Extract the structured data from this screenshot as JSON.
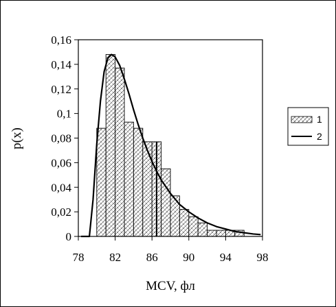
{
  "chart_data": {
    "type": "bar",
    "title": "",
    "xlabel": "MCV, фл",
    "ylabel": "p(x)",
    "xlim": [
      78,
      98
    ],
    "ylim": [
      0,
      0.16
    ],
    "x_ticks": [
      "78",
      "82",
      "86",
      "90",
      "94",
      "98"
    ],
    "y_ticks": [
      "0",
      "0,02",
      "0,04",
      "0,06",
      "0,08",
      "0,1",
      "0,12",
      "0,14",
      "0,16"
    ],
    "grid": false,
    "legend_position": "right",
    "legend": [
      "1",
      "2"
    ],
    "series": [
      {
        "name": "1",
        "kind": "histogram",
        "bins": [
          {
            "x0": 78,
            "x1": 79,
            "value": 0.0
          },
          {
            "x0": 79,
            "x1": 80,
            "value": 0.0
          },
          {
            "x0": 80,
            "x1": 81,
            "value": 0.088
          },
          {
            "x0": 81,
            "x1": 82,
            "value": 0.148
          },
          {
            "x0": 82,
            "x1": 83,
            "value": 0.137
          },
          {
            "x0": 83,
            "x1": 84,
            "value": 0.093
          },
          {
            "x0": 84,
            "x1": 85,
            "value": 0.088
          },
          {
            "x0": 85,
            "x1": 86,
            "value": 0.077
          },
          {
            "x0": 86,
            "x1": 87,
            "value": 0.077
          },
          {
            "x0": 87,
            "x1": 88,
            "value": 0.055
          },
          {
            "x0": 88,
            "x1": 89,
            "value": 0.033
          },
          {
            "x0": 89,
            "x1": 90,
            "value": 0.022
          },
          {
            "x0": 90,
            "x1": 91,
            "value": 0.016
          },
          {
            "x0": 91,
            "x1": 92,
            "value": 0.011
          },
          {
            "x0": 92,
            "x1": 93,
            "value": 0.005
          },
          {
            "x0": 93,
            "x1": 94,
            "value": 0.005
          },
          {
            "x0": 94,
            "x1": 95,
            "value": 0.005
          },
          {
            "x0": 95,
            "x1": 96,
            "value": 0.005
          },
          {
            "x0": 96,
            "x1": 97,
            "value": 0.0
          },
          {
            "x0": 97,
            "x1": 98,
            "value": 0.0
          }
        ]
      },
      {
        "name": "2",
        "kind": "line",
        "x": [
          78.3,
          79.2,
          79.6,
          80.0,
          80.4,
          80.8,
          81.2,
          81.6,
          82.0,
          82.5,
          83.0,
          83.5,
          84.0,
          84.5,
          85.0,
          85.5,
          86.0,
          86.5,
          87.0,
          88.0,
          89.0,
          90.0,
          91.0,
          92.0,
          93.0,
          94.0,
          95.0,
          96.0,
          97.0,
          97.8
        ],
        "y": [
          0.0,
          0.0,
          0.03,
          0.075,
          0.11,
          0.134,
          0.145,
          0.148,
          0.146,
          0.139,
          0.128,
          0.116,
          0.103,
          0.091,
          0.08,
          0.07,
          0.061,
          0.053,
          0.046,
          0.035,
          0.026,
          0.02,
          0.015,
          0.011,
          0.008,
          0.006,
          0.004,
          0.003,
          0.002,
          0.0015
        ]
      }
    ],
    "annotations": [
      {
        "kind": "vertical-line",
        "x": 86.5,
        "y0": 0,
        "y1": 0.077
      }
    ]
  }
}
